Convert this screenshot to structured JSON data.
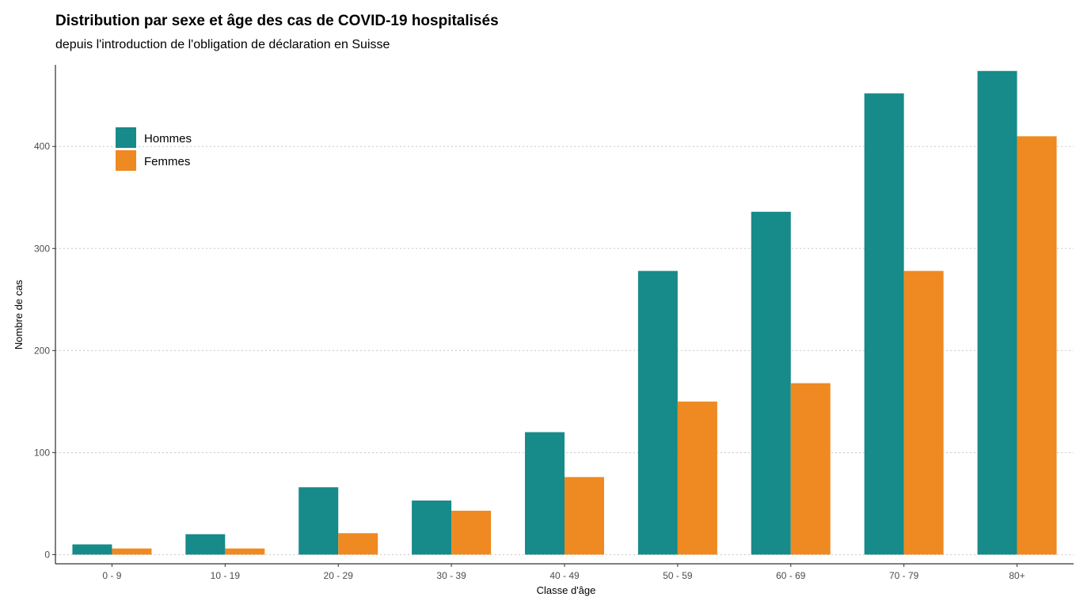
{
  "chart_data": {
    "type": "bar",
    "title": "Distribution par sexe et âge des cas de COVID-19 hospitalisés",
    "subtitle": "depuis l'introduction de l'obligation de déclaration en Suisse",
    "xlabel": "Classe d'âge",
    "ylabel": "Nombre de cas",
    "categories": [
      "0 - 9",
      "10 - 19",
      "20 - 29",
      "30 - 39",
      "40 - 49",
      "50 - 59",
      "60 - 69",
      "70 - 79",
      "80+"
    ],
    "series": [
      {
        "name": "Hommes",
        "color": "#178a8a",
        "values": [
          10,
          20,
          66,
          53,
          120,
          278,
          336,
          452,
          474
        ]
      },
      {
        "name": "Femmes",
        "color": "#ee8a21",
        "values": [
          6,
          6,
          21,
          43,
          76,
          150,
          168,
          278,
          410
        ]
      }
    ],
    "yticks": [
      0,
      100,
      200,
      300,
      400
    ],
    "ylim": [
      -9,
      480
    ],
    "grid": "horizontal dotted",
    "legend_position": "top-left"
  }
}
